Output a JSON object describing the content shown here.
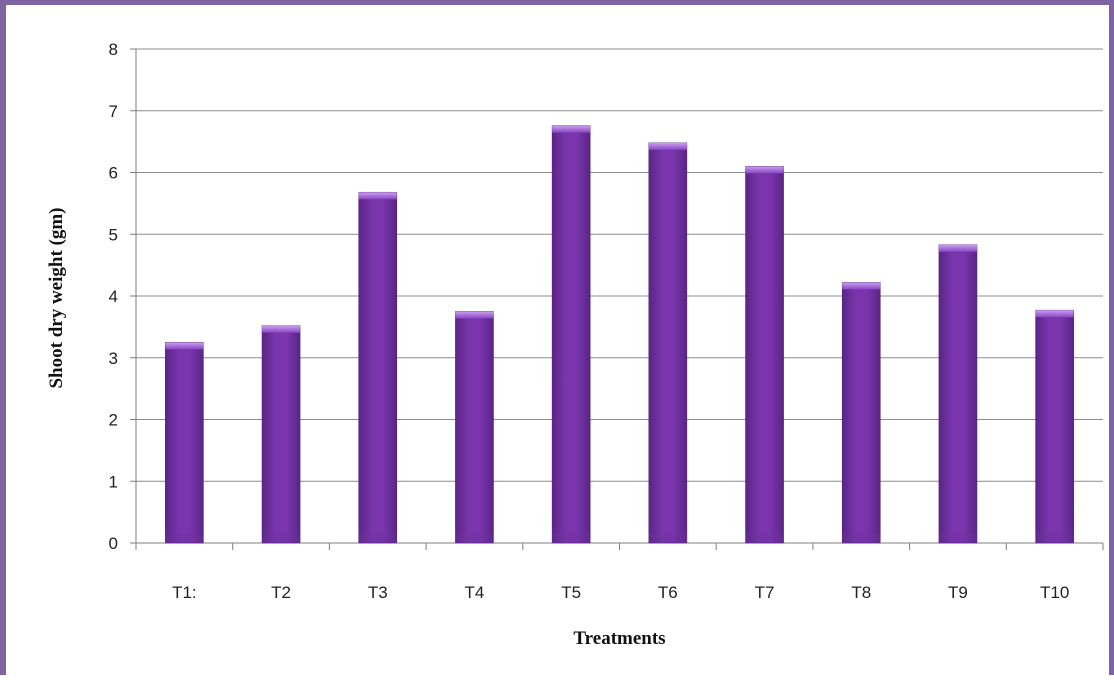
{
  "chart_data": {
    "type": "bar",
    "title": "",
    "xlabel": "Treatments",
    "ylabel": "Shoot dry weight (gm)",
    "categories": [
      "T1:",
      "T2",
      "T3",
      "T4",
      "T5",
      "T6",
      "T7",
      "T8",
      "T9",
      "T10"
    ],
    "values": [
      3.25,
      3.52,
      5.68,
      3.75,
      6.76,
      6.48,
      6.1,
      4.22,
      4.83,
      3.77
    ],
    "ylim": [
      0,
      8
    ],
    "yticks": [
      0,
      1,
      2,
      3,
      4,
      5,
      6,
      7,
      8
    ],
    "grid": true,
    "legend": "none",
    "colors": {
      "bar": "#7030a0",
      "bar_light": "#9b5fcf",
      "bar_dark": "#4e1f75",
      "frame": "#8064a2",
      "grid": "#8c8c8c"
    }
  }
}
